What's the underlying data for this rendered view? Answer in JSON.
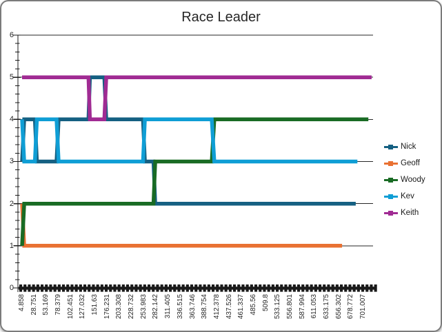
{
  "chart_data": {
    "type": "line",
    "title": "Race Leader",
    "x_labels": [
      4.858,
      28.751,
      53.169,
      78.379,
      102.451,
      127.032,
      151.63,
      176.231,
      203.308,
      228.732,
      253.983,
      282.142,
      311.405,
      336.515,
      363.746,
      388.754,
      412.378,
      437.526,
      461.337,
      485.56,
      509.8,
      533.125,
      556.801,
      587.994,
      611.053,
      633.175,
      656.302,
      678.772,
      701.007
    ],
    "y_tick_labels": [
      "0",
      "1",
      "2",
      "3",
      "4",
      "5",
      "6"
    ],
    "ylim": [
      0,
      6
    ],
    "xlabel": "",
    "ylabel": "",
    "grid": "horizontal major gridlines",
    "legend_position": "right",
    "legend": [
      "Nick",
      "Geoff",
      "Woody",
      "Kev",
      "Keith"
    ],
    "series": [
      {
        "name": "Nick",
        "color": "#156082",
        "points": [
          [
            4.858,
            3
          ],
          [
            9,
            4
          ],
          [
            30,
            4
          ],
          [
            34,
            3
          ],
          [
            74,
            3
          ],
          [
            78.379,
            4
          ],
          [
            138,
            4
          ],
          [
            141,
            5
          ],
          [
            170,
            5
          ],
          [
            174,
            4
          ],
          [
            252,
            4
          ],
          [
            256,
            3
          ],
          [
            276,
            3
          ],
          [
            280,
            2
          ],
          [
            687,
            2
          ]
        ]
      },
      {
        "name": "Geoff",
        "color": "#E97132",
        "points": [
          [
            4.858,
            2
          ],
          [
            9,
            1
          ],
          [
            662,
            1
          ]
        ]
      },
      {
        "name": "Woody",
        "color": "#196B24",
        "points": [
          [
            4.858,
            1
          ],
          [
            9,
            2
          ],
          [
            276,
            2
          ],
          [
            280,
            3
          ],
          [
            402,
            3
          ],
          [
            407,
            4
          ],
          [
            710,
            4
          ]
        ]
      },
      {
        "name": "Kev",
        "color": "#0F9ED5",
        "points": [
          [
            4.858,
            4
          ],
          [
            9,
            3
          ],
          [
            30,
            3
          ],
          [
            34,
            4
          ],
          [
            74,
            4
          ],
          [
            78.379,
            3
          ],
          [
            252,
            3
          ],
          [
            256,
            4
          ],
          [
            402,
            4
          ],
          [
            407,
            3
          ],
          [
            690,
            3
          ]
        ]
      },
      {
        "name": "Keith",
        "color": "#A02B93",
        "points": [
          [
            4.858,
            5
          ],
          [
            138,
            5
          ],
          [
            141,
            4
          ],
          [
            170,
            4
          ],
          [
            174,
            5
          ],
          [
            716,
            5
          ]
        ]
      }
    ]
  }
}
